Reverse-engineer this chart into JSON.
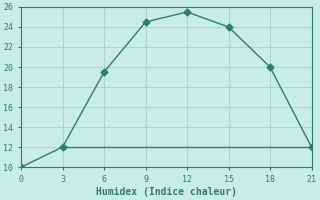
{
  "title": "",
  "xlabel": "Humidex (Indice chaleur)",
  "line1_x": [
    0,
    3,
    6,
    9,
    12,
    15,
    18,
    21
  ],
  "line1_y": [
    10,
    12,
    19.5,
    24.5,
    25.5,
    24,
    20,
    12
  ],
  "line2_x": [
    3,
    21
  ],
  "line2_y": [
    12,
    12
  ],
  "xlim": [
    0,
    21
  ],
  "ylim": [
    10,
    26
  ],
  "xticks": [
    0,
    3,
    6,
    9,
    12,
    15,
    18,
    21
  ],
  "yticks": [
    10,
    12,
    14,
    16,
    18,
    20,
    22,
    24,
    26
  ],
  "line_color": "#2e7d6e",
  "bg_color": "#c8ece8",
  "grid_color": "#b0ccc8",
  "marker": "D",
  "marker_size": 3.5,
  "linewidth": 1.0,
  "tick_fontsize": 6,
  "xlabel_fontsize": 7
}
